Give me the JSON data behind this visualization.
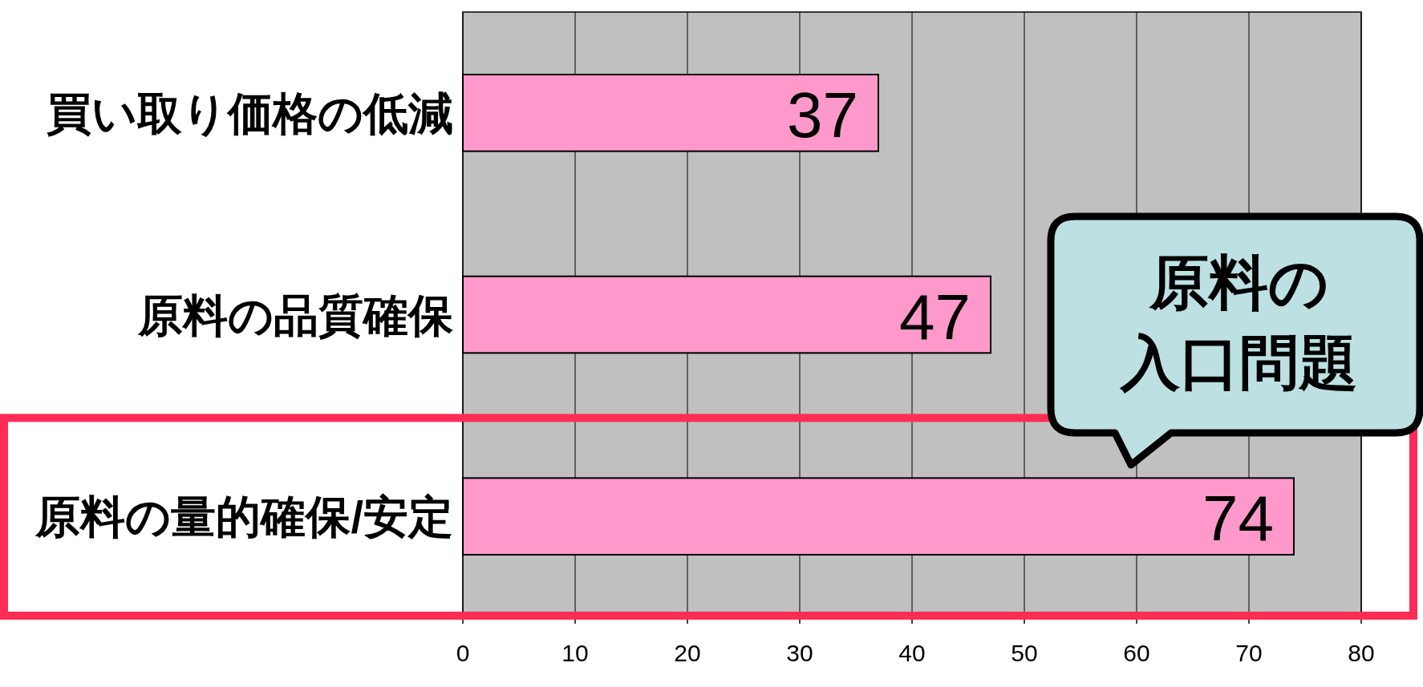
{
  "chart_data": {
    "type": "bar",
    "orientation": "horizontal",
    "categories": [
      "買い取り価格の低減",
      "原料の品質確保",
      "原料の量的確保/安定"
    ],
    "values": [
      37,
      47,
      74
    ],
    "color": "#ff99cc",
    "xlim": [
      0,
      80
    ],
    "xticks": [
      0,
      10,
      20,
      30,
      40,
      50,
      60,
      70,
      80
    ],
    "grid": "x",
    "data_labels": true,
    "annotations": [
      "原料の",
      "入口問題"
    ]
  }
}
